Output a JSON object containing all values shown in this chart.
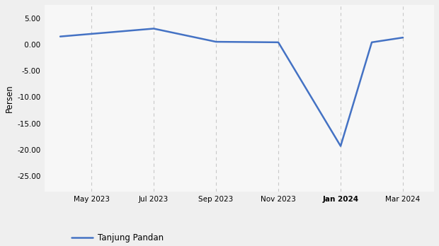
{
  "x_tick_positions": [
    1,
    3,
    5,
    7,
    9,
    11
  ],
  "x_tick_labels": [
    "May 2023",
    "Jul 2023",
    "Sep 2023",
    "Nov 2023",
    "Jan 2024",
    "Mar 2024"
  ],
  "series_x": [
    0,
    1,
    3,
    5,
    7,
    9,
    10,
    11
  ],
  "series_y": [
    1.5,
    2.0,
    3.0,
    0.5,
    0.4,
    -19.3,
    0.4,
    1.3
  ],
  "line_color": "#4472c4",
  "linewidth": 1.8,
  "ylabel": "Persen",
  "ylim": [
    -28,
    7.5
  ],
  "yticks": [
    5.0,
    0.0,
    -5.0,
    -10.0,
    -15.0,
    -20.0,
    -25.0
  ],
  "ytick_labels": [
    "5.00",
    " 0.00",
    "-5.00",
    "-10.00",
    "-15.00",
    "-20.00",
    "-25.00"
  ],
  "xlim": [
    -0.5,
    12.0
  ],
  "background_color": "#efefef",
  "plot_background": "#f7f7f7",
  "legend_label": "Tanjung Pandan",
  "grid_color": "#c8c8c8",
  "tick_fontsize": 7.5,
  "ylabel_fontsize": 8.5,
  "legend_fontsize": 8.5,
  "bold_tick": "Jan 2024"
}
